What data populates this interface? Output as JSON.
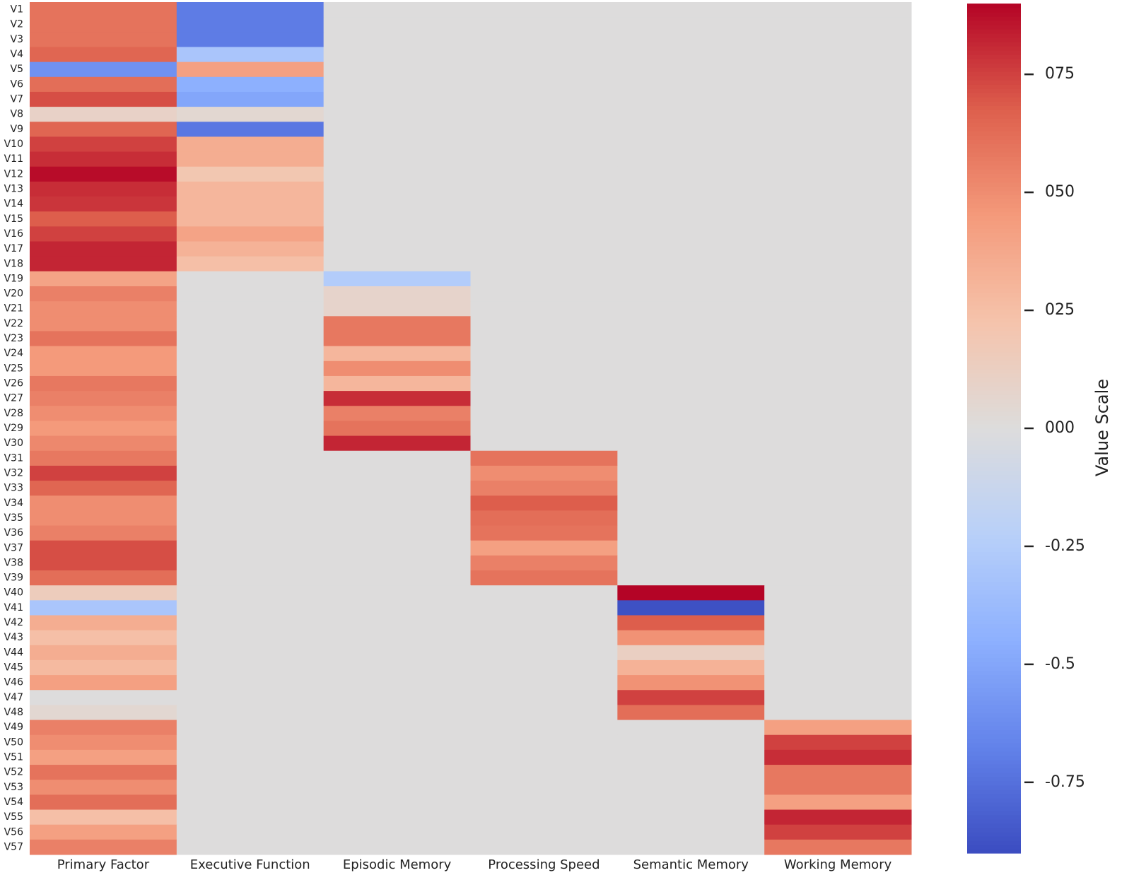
{
  "chart_data": {
    "type": "heatmap",
    "columns": [
      "Primary Factor",
      "Executive Function",
      "Episodic Memory",
      "Processing Speed",
      "Semantic Memory",
      "Working Memory"
    ],
    "rows": [
      "V1",
      "V2",
      "V3",
      "V4",
      "V5",
      "V6",
      "V7",
      "V8",
      "V9",
      "V10",
      "V11",
      "V12",
      "V13",
      "V14",
      "V15",
      "V16",
      "V17",
      "V18",
      "V19",
      "V20",
      "V21",
      "V22",
      "V23",
      "V24",
      "V25",
      "V26",
      "V27",
      "V28",
      "V29",
      "V30",
      "V31",
      "V32",
      "V33",
      "V34",
      "V35",
      "V36",
      "V37",
      "V38",
      "V39",
      "V40",
      "V41",
      "V42",
      "V43",
      "V44",
      "V45",
      "V46",
      "V47",
      "V48",
      "V49",
      "V50",
      "V51",
      "V52",
      "V53",
      "V54",
      "V55",
      "V56",
      "V57"
    ],
    "values": [
      [
        0.6,
        -0.7,
        0,
        0,
        0,
        0
      ],
      [
        0.6,
        -0.7,
        0,
        0,
        0,
        0
      ],
      [
        0.6,
        -0.7,
        0,
        0,
        0,
        0
      ],
      [
        0.65,
        -0.3,
        0,
        0,
        0,
        0
      ],
      [
        -0.6,
        0.42,
        0,
        0,
        0,
        0
      ],
      [
        0.62,
        -0.45,
        0,
        0,
        0,
        0
      ],
      [
        0.72,
        -0.5,
        0,
        0,
        0,
        0
      ],
      [
        0.1,
        0.05,
        0,
        0,
        0,
        0
      ],
      [
        0.65,
        -0.72,
        0,
        0,
        0,
        0
      ],
      [
        0.75,
        0.35,
        0,
        0,
        0,
        0
      ],
      [
        0.8,
        0.35,
        0,
        0,
        0,
        0
      ],
      [
        0.88,
        0.2,
        0,
        0,
        0,
        0
      ],
      [
        0.8,
        0.3,
        0,
        0,
        0,
        0
      ],
      [
        0.78,
        0.3,
        0,
        0,
        0,
        0
      ],
      [
        0.68,
        0.3,
        0,
        0,
        0,
        0
      ],
      [
        0.75,
        0.4,
        0,
        0,
        0,
        0
      ],
      [
        0.82,
        0.32,
        0,
        0,
        0,
        0
      ],
      [
        0.82,
        0.25,
        0,
        0,
        0,
        0
      ],
      [
        0.4,
        0,
        -0.25,
        0,
        0,
        0
      ],
      [
        0.55,
        0,
        0.08,
        0,
        0,
        0
      ],
      [
        0.5,
        0,
        0.08,
        0,
        0,
        0
      ],
      [
        0.5,
        0,
        0.58,
        0,
        0,
        0
      ],
      [
        0.6,
        0,
        0.58,
        0,
        0,
        0
      ],
      [
        0.45,
        0,
        0.3,
        0,
        0,
        0
      ],
      [
        0.45,
        0,
        0.5,
        0,
        0,
        0
      ],
      [
        0.58,
        0,
        0.3,
        0,
        0,
        0
      ],
      [
        0.55,
        0,
        0.8,
        0,
        0,
        0
      ],
      [
        0.5,
        0,
        0.55,
        0,
        0,
        0
      ],
      [
        0.45,
        0,
        0.6,
        0,
        0,
        0
      ],
      [
        0.52,
        0,
        0.82,
        0,
        0,
        0
      ],
      [
        0.58,
        0,
        0,
        0.6,
        0,
        0
      ],
      [
        0.75,
        0,
        0,
        0.5,
        0,
        0
      ],
      [
        0.65,
        0,
        0,
        0.55,
        0,
        0
      ],
      [
        0.5,
        0,
        0,
        0.68,
        0,
        0
      ],
      [
        0.5,
        0,
        0,
        0.62,
        0,
        0
      ],
      [
        0.55,
        0,
        0,
        0.6,
        0,
        0
      ],
      [
        0.72,
        0,
        0,
        0.42,
        0,
        0
      ],
      [
        0.72,
        0,
        0,
        0.55,
        0,
        0
      ],
      [
        0.62,
        0,
        0,
        0.6,
        0,
        0
      ],
      [
        0.15,
        0,
        0,
        0,
        0.9,
        0
      ],
      [
        -0.3,
        0,
        0,
        0,
        -0.88,
        0
      ],
      [
        0.35,
        0,
        0,
        0,
        0.68,
        0
      ],
      [
        0.25,
        0,
        0,
        0,
        0.48,
        0
      ],
      [
        0.35,
        0,
        0,
        0,
        0.12,
        0
      ],
      [
        0.28,
        0,
        0,
        0,
        0.32,
        0
      ],
      [
        0.42,
        0,
        0,
        0,
        0.48,
        0
      ],
      [
        0,
        0,
        0,
        0,
        0.75,
        0
      ],
      [
        0.05,
        0,
        0,
        0,
        0.62,
        0
      ],
      [
        0.55,
        0,
        0,
        0,
        0,
        0.42
      ],
      [
        0.5,
        0,
        0,
        0,
        0,
        0.75
      ],
      [
        0.42,
        0,
        0,
        0,
        0,
        0.8
      ],
      [
        0.6,
        0,
        0,
        0,
        0,
        0.58
      ],
      [
        0.5,
        0,
        0,
        0,
        0,
        0.58
      ],
      [
        0.62,
        0,
        0,
        0,
        0,
        0.42
      ],
      [
        0.25,
        0,
        0,
        0,
        0,
        0.82
      ],
      [
        0.42,
        0,
        0,
        0,
        0,
        0.75
      ],
      [
        0.55,
        0,
        0,
        0,
        0,
        0.58
      ]
    ],
    "colorbar_label": "Value Scale",
    "clim": [
      -0.9,
      0.9
    ],
    "cticks": [
      {
        "value": 0.75,
        "label": "075"
      },
      {
        "value": 0.5,
        "label": "050"
      },
      {
        "value": 0.25,
        "label": "025"
      },
      {
        "value": 0,
        "label": "000"
      },
      -0.25,
      -0.5,
      -0.75
    ],
    "colormap": [
      "#3b4cc0",
      "#6282ea",
      "#8db0fe",
      "#b8d0f9",
      "#dddcdc",
      "#f5c4ac",
      "#f49a7b",
      "#de604d",
      "#b40426"
    ]
  }
}
